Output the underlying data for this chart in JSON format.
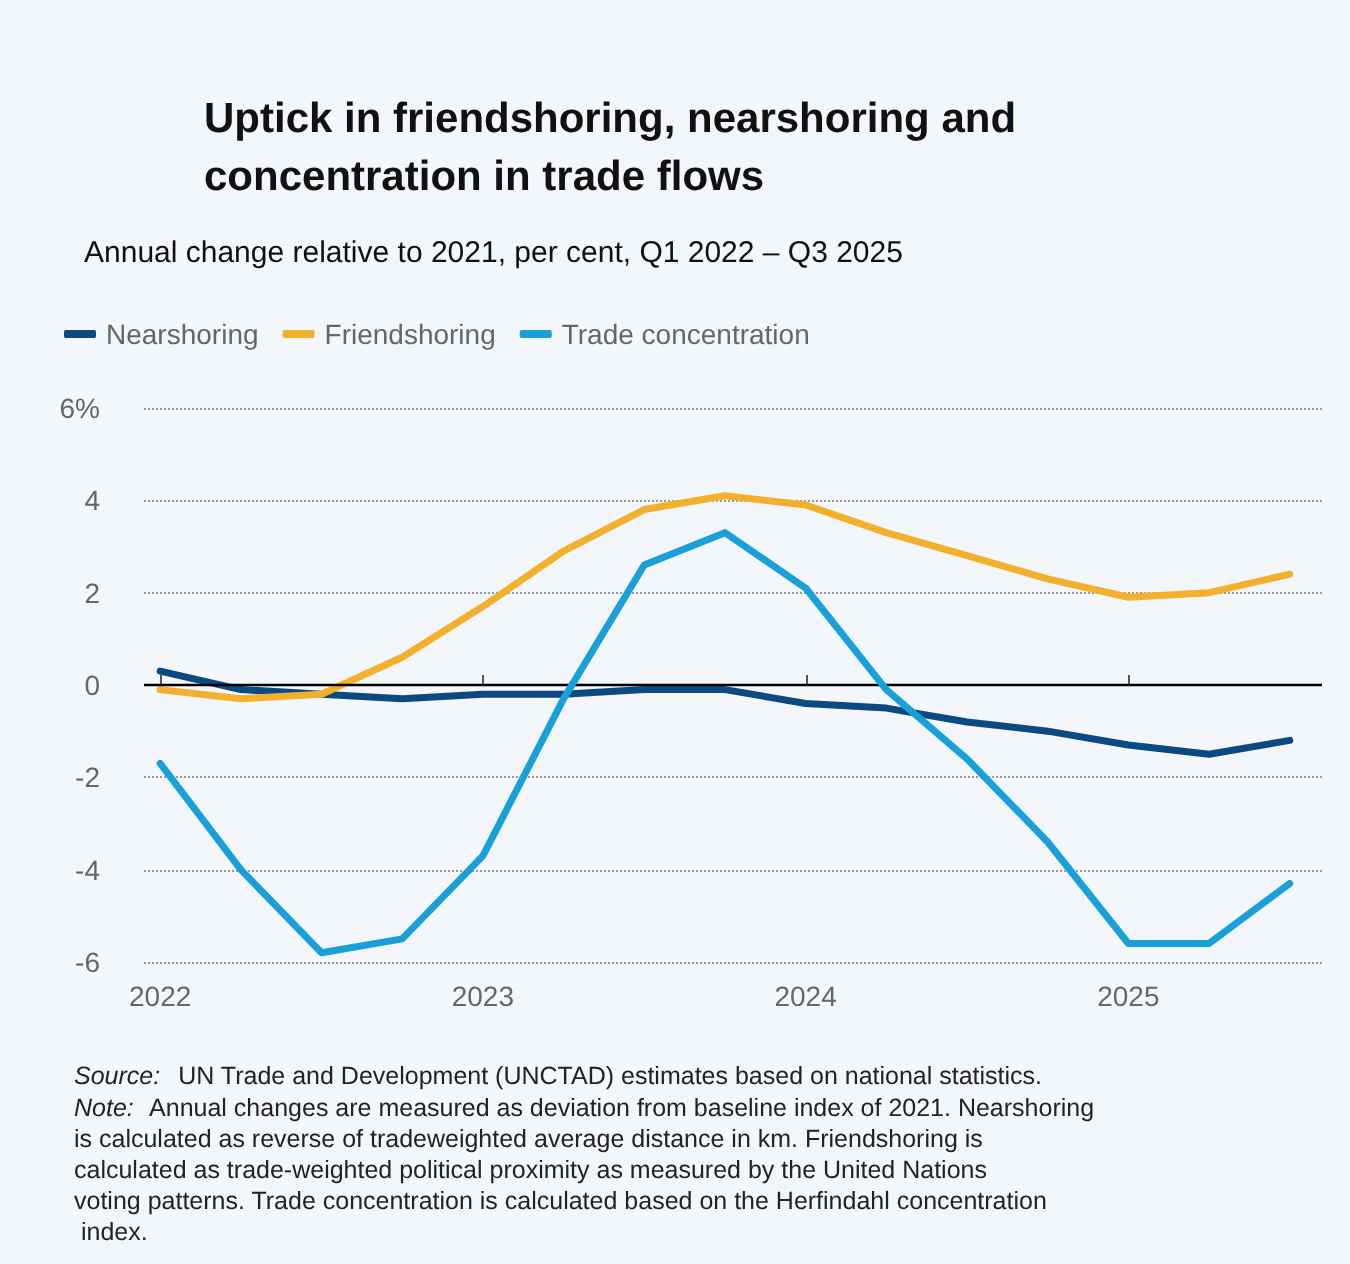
{
  "chart_data": {
    "type": "line",
    "title": "Uptick in friendshoring, nearshoring and concentration in trade flows",
    "subtitle": "Annual change relative to 2021, per cent, Q1 2022 – Q3 2025",
    "x": [
      2022,
      2022.25,
      2022.5,
      2022.75,
      2023,
      2023.25,
      2023.5,
      2023.75,
      2024,
      2024.25,
      2024.5,
      2024.75,
      2025,
      2025.25,
      2025.5
    ],
    "series": [
      {
        "name": "Nearshoring",
        "color": "#0b4a80",
        "values": [
          0.3,
          -0.1,
          -0.2,
          -0.3,
          -0.2,
          -0.2,
          -0.1,
          -0.1,
          -0.4,
          -0.5,
          -0.8,
          -1.0,
          -1.3,
          -1.5,
          -1.2
        ]
      },
      {
        "name": "Friendshoring",
        "color": "#f2b02c",
        "values": [
          -0.1,
          -0.3,
          -0.2,
          0.6,
          1.7,
          2.9,
          3.8,
          4.1,
          3.9,
          3.3,
          2.8,
          2.3,
          1.9,
          2.0,
          2.4
        ]
      },
      {
        "name": "Trade concentration",
        "color": "#1aa0d8",
        "values": [
          -1.7,
          -4.0,
          -5.8,
          -5.5,
          -3.7,
          -0.3,
          2.6,
          3.3,
          2.1,
          -0.1,
          -1.6,
          -3.4,
          -5.6,
          -5.6,
          -4.3
        ]
      }
    ],
    "xlim": [
      2021.95,
      2025.6
    ],
    "xticks": [
      2022,
      2023,
      2024,
      2025
    ],
    "ylim": [
      -6,
      6
    ],
    "yticks": [
      -6,
      -4,
      -2,
      0,
      2,
      4,
      {
        "value": 6,
        "label": "6%"
      }
    ],
    "grid": "y",
    "legend": "top left",
    "marker": "none",
    "line_style": "solid",
    "ref_lines": [
      {
        "axis": "y",
        "value": 0,
        "color": "#000000"
      }
    ],
    "annotations": [
      "Source: UN Trade and Development (UNCTAD) estimates based on national statistics.",
      "Note: Annual changes are measured as deviation from baseline index of 2021. Nearshoring is calculated as reverse of tradeweighted average distance in km. Friendshoring is calculated as trade-weighted political proximity as measured by the United Nations voting patterns. Trade concentration is calculated based on the Herfindahl concentration index."
    ]
  }
}
